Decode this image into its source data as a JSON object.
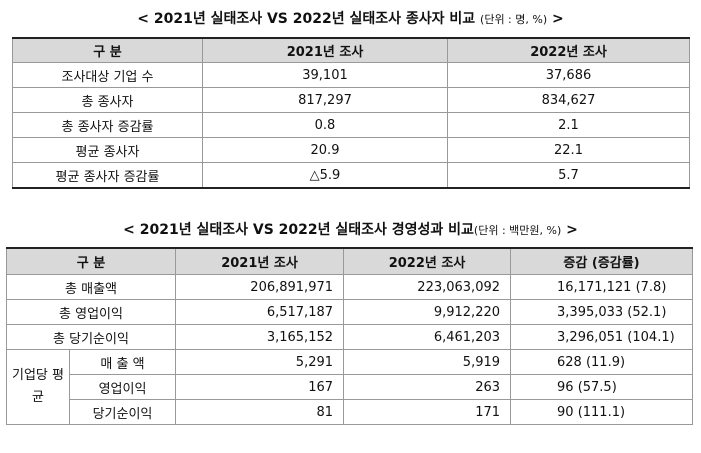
{
  "table1": {
    "title": "< 2021년 실태조사 VS 2022년 실태조사 종사자 비교",
    "unit": "(단위 : 명, %)",
    "title_end": " >",
    "headers": [
      "구 분",
      "2021년 조사",
      "2022년 조사"
    ],
    "rows": [
      {
        "label": "조사대상 기업 수",
        "v2021": "39,101",
        "v2022": "37,686"
      },
      {
        "label": "총 종사자",
        "v2021": "817,297",
        "v2022": "834,627"
      },
      {
        "label": "총 종사자 증감률",
        "v2021": "0.8",
        "v2022": "2.1"
      },
      {
        "label": "평균 종사자",
        "v2021": "20.9",
        "v2022": "22.1"
      },
      {
        "label": "평균 종사자 증감률",
        "v2021": "△5.9",
        "v2022": "5.7"
      }
    ]
  },
  "table2": {
    "title": "< 2021년 실태조사 VS 2022년 실태조사 경영성과 비교",
    "unit": "(단위 : 백만원, %)",
    "title_end": " >",
    "headers": [
      "구 분",
      "2021년 조사",
      "2022년 조사",
      "증감 (증감률)"
    ],
    "rows": [
      {
        "label": "총 매출액",
        "v2021": "206,891,971",
        "v2022": "223,063,092",
        "change": "16,171,121 (7.8)"
      },
      {
        "label": "총 영업이익",
        "v2021": "6,517,187",
        "v2022": "9,912,220",
        "change": "3,395,033 (52.1)"
      },
      {
        "label": "총 당기순이익",
        "v2021": "3,165,152",
        "v2022": "6,461,203",
        "change": "3,296,051 (104.1)"
      }
    ],
    "group_label": "기업당 평균",
    "group_rows": [
      {
        "label": "매 출 액",
        "v2021": "5,291",
        "v2022": "5,919",
        "change": "628 (11.9)"
      },
      {
        "label": "영업이익",
        "v2021": "167",
        "v2022": "263",
        "change": "96 (57.5)"
      },
      {
        "label": "당기순이익",
        "v2021": "81",
        "v2022": "171",
        "change": "90 (111.1)"
      }
    ]
  }
}
